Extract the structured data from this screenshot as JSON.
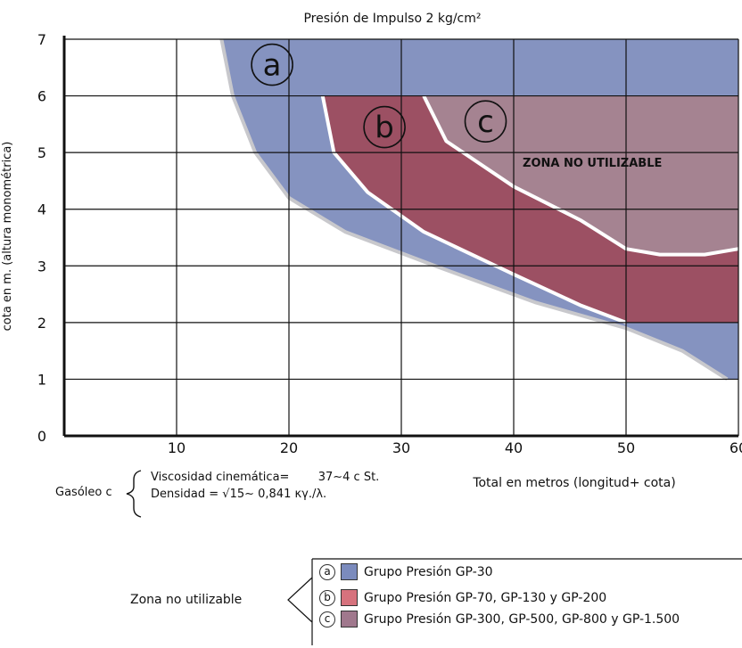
{
  "chart_data": {
    "type": "area",
    "title": "Presión de Impulso 2 kg/cm²",
    "xlabel": "Total en metros (longitud+ cota)",
    "ylabel": "cota en m. (altura monométrica)",
    "xlim": [
      0,
      60
    ],
    "ylim": [
      0,
      7
    ],
    "x_ticks": [
      "10",
      "20",
      "30",
      "40",
      "50",
      "60"
    ],
    "y_ticks": [
      "0",
      "1",
      "2",
      "3",
      "4",
      "5",
      "6",
      "7"
    ],
    "grid": true,
    "series": [
      {
        "name": "a",
        "color": "#8593c0",
        "boundary": [
          [
            14,
            7
          ],
          [
            15,
            6
          ],
          [
            17,
            5
          ],
          [
            20,
            4.2
          ],
          [
            25,
            3.6
          ],
          [
            33,
            3.0
          ],
          [
            42,
            2.35
          ],
          [
            50,
            1.9
          ],
          [
            55,
            1.5
          ],
          [
            59,
            1.0
          ],
          [
            60,
            1.0
          ],
          [
            60,
            7
          ]
        ]
      },
      {
        "name": "b",
        "color": "#9c5063",
        "boundary": [
          [
            23,
            6
          ],
          [
            24,
            5
          ],
          [
            27,
            4.3
          ],
          [
            32,
            3.6
          ],
          [
            40,
            2.85
          ],
          [
            46,
            2.3
          ],
          [
            50,
            2.0
          ],
          [
            60,
            2.0
          ],
          [
            60,
            6
          ]
        ]
      },
      {
        "name": "c",
        "color": "#a58391",
        "boundary": [
          [
            32,
            6
          ],
          [
            34,
            5.2
          ],
          [
            40,
            4.4
          ],
          [
            46,
            3.8
          ],
          [
            50,
            3.3
          ],
          [
            53,
            3.2
          ],
          [
            57,
            3.2
          ],
          [
            60,
            3.3
          ],
          [
            60,
            6
          ]
        ]
      }
    ],
    "annotations": [
      {
        "text": "ZONA NO UTILIZABLE",
        "x": 47,
        "y": 4.75
      }
    ]
  },
  "notes": {
    "fuel": "Gasóleo c",
    "viscosity": "Viscosidad cinemática=",
    "viscosity_value": "37∼4 c St.",
    "density": "Densidad =",
    "density_value": "√15∼ 0,841 κγ./λ."
  },
  "legend": {
    "title": "Zona no utilizable",
    "items": [
      {
        "marker": "a",
        "label": "Grupo Presión GP-30",
        "color": "#7b8bbd"
      },
      {
        "marker": "b",
        "label": "Grupo Presión GP-70, GP-130 y GP-200",
        "color": "#d6727d"
      },
      {
        "marker": "c",
        "label": "Grupo Presión GP-300, GP-500, GP-800 y GP-1.500",
        "color": "#a0788d"
      }
    ]
  }
}
